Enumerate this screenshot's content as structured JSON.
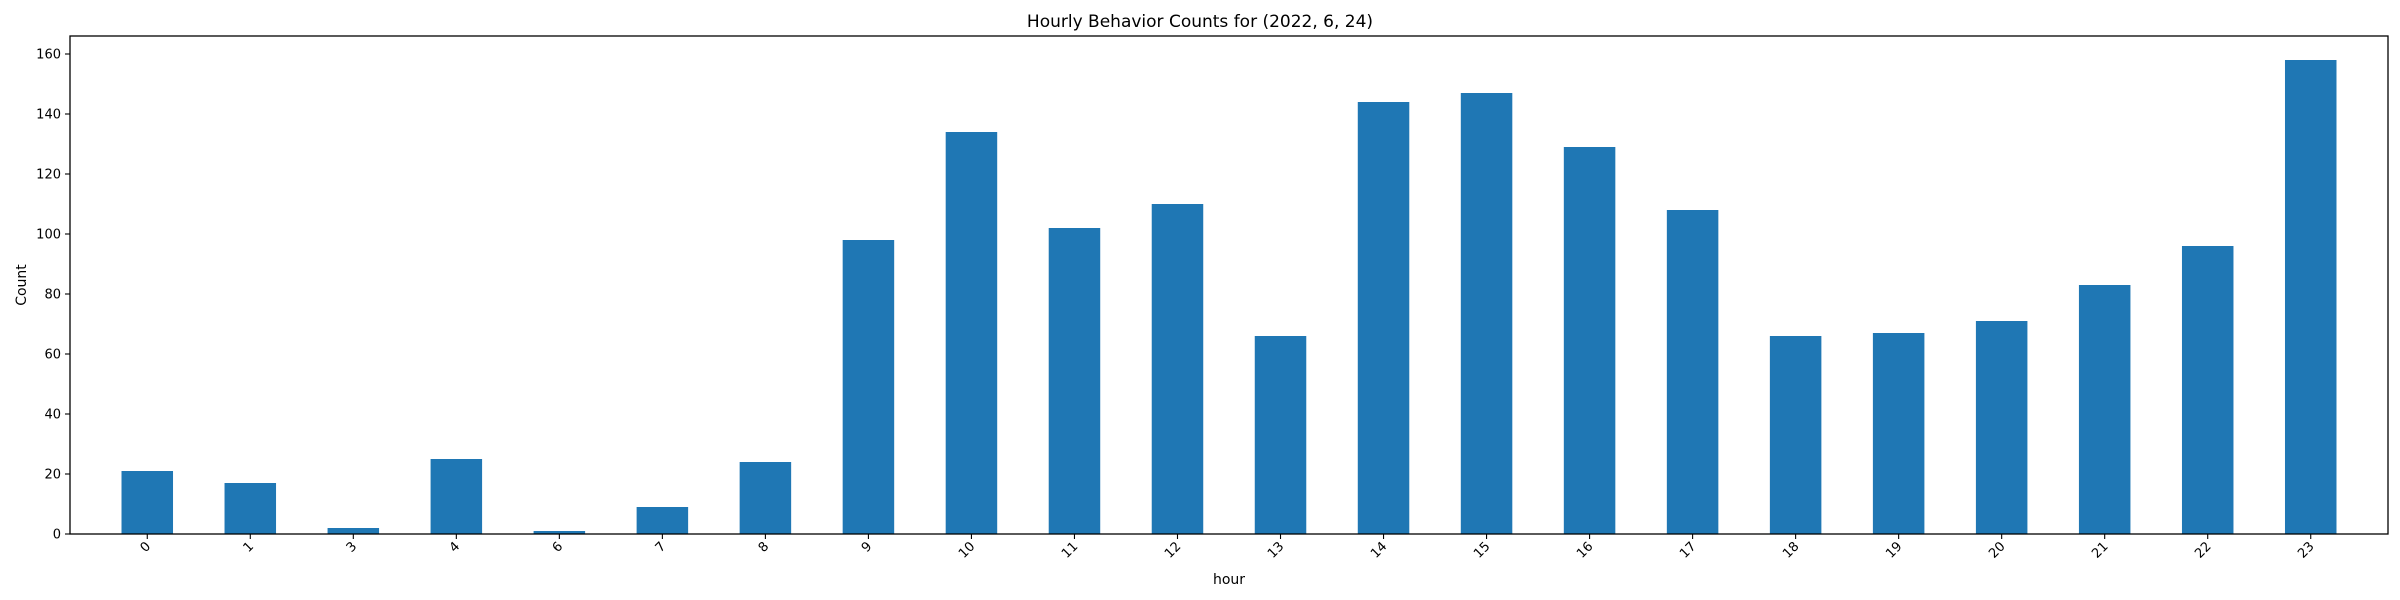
{
  "chart_data": {
    "type": "bar",
    "title": "Hourly Behavior Counts for (2022, 6, 24)",
    "xlabel": "hour",
    "ylabel": "Count",
    "categories": [
      "0",
      "1",
      "3",
      "4",
      "6",
      "7",
      "8",
      "9",
      "10",
      "11",
      "12",
      "13",
      "14",
      "15",
      "16",
      "17",
      "18",
      "19",
      "20",
      "21",
      "22",
      "23"
    ],
    "values": [
      21,
      17,
      2,
      25,
      1,
      9,
      24,
      98,
      134,
      102,
      110,
      66,
      144,
      147,
      129,
      108,
      66,
      67,
      71,
      83,
      96,
      158
    ],
    "ylim": [
      0,
      166
    ],
    "yticks": [
      0,
      20,
      40,
      60,
      80,
      100,
      120,
      140,
      160
    ],
    "grid": false,
    "legend": "none",
    "colors": {
      "bar": "#1f77b4"
    }
  }
}
